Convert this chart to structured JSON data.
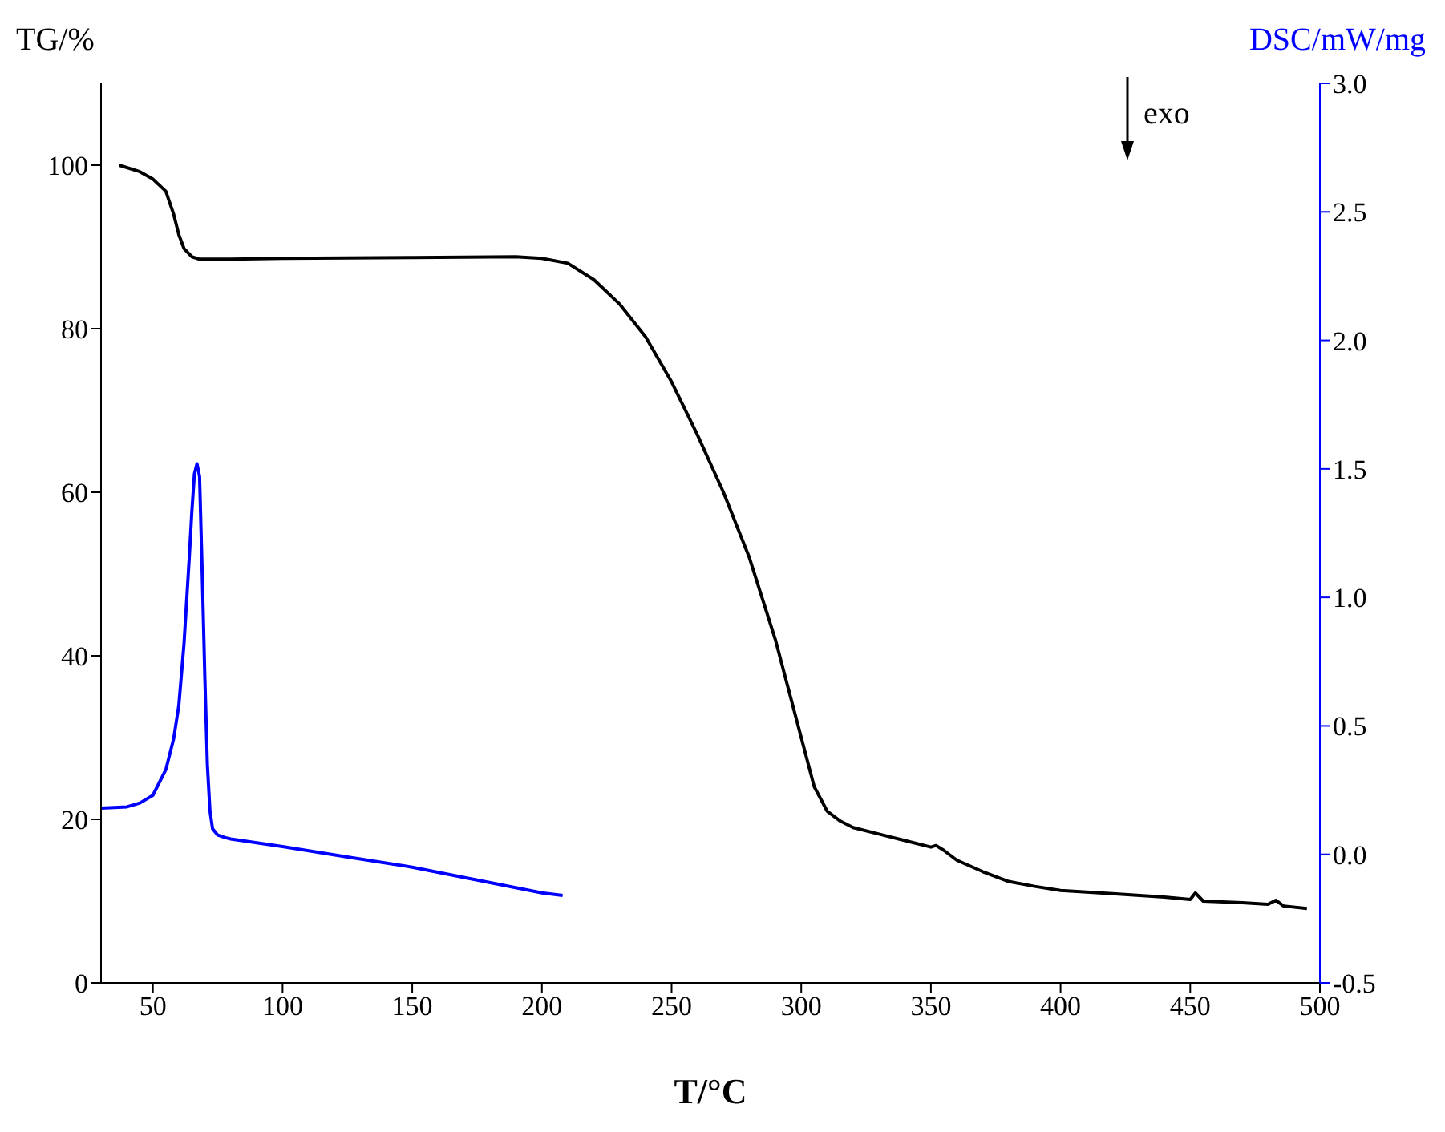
{
  "chart_data": {
    "type": "line",
    "xlabel": "T/°C",
    "ylabel": "TG/%",
    "y2label": "DSC/mW/mg",
    "annotations": [
      "exo"
    ],
    "xlim": [
      30,
      500
    ],
    "xticks": [
      50,
      100,
      150,
      200,
      250,
      300,
      350,
      400,
      450,
      500
    ],
    "ylim": [
      0,
      110
    ],
    "yticks": [
      0,
      20,
      40,
      60,
      80,
      100
    ],
    "y2lim": [
      -0.5,
      3.0
    ],
    "y2ticks": [
      -0.5,
      {
        "value": 0,
        "label": "0.0"
      },
      0.5,
      {
        "value": 1,
        "label": "1.0"
      },
      1.5,
      {
        "value": 2,
        "label": "2.0"
      },
      2.5,
      {
        "value": 3,
        "label": "3.0"
      }
    ],
    "marker": "none",
    "line_style": "solid",
    "series": [
      {
        "color": "#000000",
        "x": [
          37,
          45,
          50,
          55,
          58,
          60,
          62,
          65,
          68,
          70,
          80,
          100,
          150,
          190,
          200,
          210,
          220,
          230,
          240,
          250,
          260,
          270,
          280,
          290,
          295,
          300,
          305,
          310,
          315,
          320,
          330,
          340,
          350,
          352,
          355,
          360,
          370,
          380,
          390,
          400,
          420,
          440,
          450,
          452,
          455,
          470,
          480,
          483,
          486,
          495
        ],
        "values": [
          100,
          99.2,
          98.3,
          96.8,
          94,
          91.5,
          89.8,
          88.8,
          88.5,
          88.5,
          88.5,
          88.6,
          88.7,
          88.8,
          88.6,
          88,
          86,
          83,
          79,
          73.5,
          67,
          60,
          52,
          42,
          36,
          30,
          24,
          21,
          19.8,
          19,
          18.2,
          17.4,
          16.6,
          16.8,
          16.2,
          15,
          13.6,
          12.4,
          11.8,
          11.3,
          10.9,
          10.5,
          10.2,
          11,
          10,
          9.8,
          9.6,
          10.1,
          9.4,
          9.1
        ]
      },
      {
        "color": "#0000ff",
        "axis": "y2",
        "x": [
          30,
          40,
          45,
          50,
          55,
          58,
          60,
          62,
          64,
          65,
          66,
          67,
          68,
          69,
          70,
          71,
          72,
          73,
          75,
          78,
          80,
          100,
          125,
          150,
          175,
          200,
          208
        ],
        "values": [
          0.18,
          0.185,
          0.2,
          0.23,
          0.33,
          0.45,
          0.58,
          0.82,
          1.15,
          1.33,
          1.48,
          1.52,
          1.47,
          1.1,
          0.7,
          0.35,
          0.17,
          0.1,
          0.075,
          0.065,
          0.06,
          0.03,
          -0.01,
          -0.05,
          -0.1,
          -0.15,
          -0.16
        ]
      }
    ]
  }
}
